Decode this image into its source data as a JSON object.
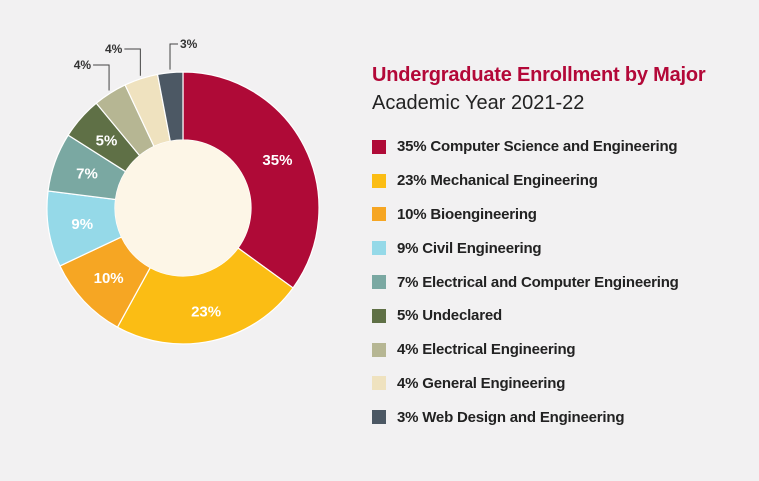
{
  "chart_data": {
    "type": "pie",
    "title": "Undergraduate Enrollment by Major",
    "subtitle": "Academic Year 2021-22",
    "slices": [
      {
        "label": "Computer Science and Engineering",
        "value": 35,
        "value_label": "35%",
        "legend_label": "35% Computer Science and Engineering",
        "color": "#af0a37"
      },
      {
        "label": "Mechanical Engineering",
        "value": 23,
        "value_label": "23%",
        "legend_label": "23% Mechanical Engineering",
        "color": "#fbbd14"
      },
      {
        "label": "Bioengineering",
        "value": 10,
        "value_label": "10%",
        "legend_label": "10% Bioengineering",
        "color": "#f6a623"
      },
      {
        "label": "Civil Engineering",
        "value": 9,
        "value_label": "9%",
        "legend_label": "9% Civil Engineering",
        "color": "#95d9e8"
      },
      {
        "label": "Electrical and Computer Engineering",
        "value": 7,
        "value_label": "7%",
        "legend_label": "7% Electrical and Computer Engineering",
        "color": "#7aa8a2"
      },
      {
        "label": "Undeclared",
        "value": 5,
        "value_label": "5%",
        "legend_label": "5% Undeclared",
        "color": "#5f7046"
      },
      {
        "label": "Electrical Engineering",
        "value": 4,
        "value_label": "4%",
        "legend_label": "4% Electrical Engineering",
        "color": "#b6b693"
      },
      {
        "label": "General Engineering",
        "value": 4,
        "value_label": "4%",
        "legend_label": "4% General Engineering",
        "color": "#efe2bf"
      },
      {
        "label": "Web Design and Engineering",
        "value": 3,
        "value_label": "3%",
        "legend_label": "3% Web Design and Engineering",
        "color": "#4c5864"
      }
    ],
    "donut_hole_color": "#fdf6e7",
    "legend_position": "right"
  }
}
